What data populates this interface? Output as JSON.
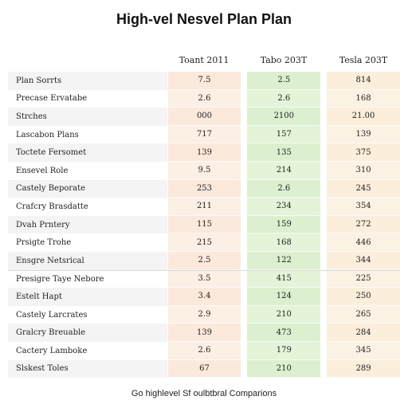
{
  "title": "High-vel Nesvel Plan Plan",
  "columns": [
    "Toant 2011",
    "Tabo 203T",
    "Tesla 203T"
  ],
  "rows": [
    {
      "label": "Plan Sorrts",
      "values": [
        "7.5",
        "2.5",
        "814"
      ]
    },
    {
      "label": "Precase Ervatabe",
      "values": [
        "2.6",
        "2.6",
        "168"
      ]
    },
    {
      "label": "Strches",
      "values": [
        "000",
        "2100",
        "21.00"
      ]
    },
    {
      "label": "Lascabon Plans",
      "values": [
        "717",
        "157",
        "139"
      ]
    },
    {
      "label": "Toctete Fersomet",
      "values": [
        "139",
        "135",
        "375"
      ]
    },
    {
      "label": "Ensevel Role",
      "values": [
        "9.5",
        "214",
        "310"
      ]
    },
    {
      "label": "Castely Beporate",
      "values": [
        "253",
        "2.6",
        "245"
      ]
    },
    {
      "label": "Crafcry Brasdatte",
      "values": [
        "211",
        "234",
        "354"
      ]
    },
    {
      "label": "Dvah Prntery",
      "values": [
        "115",
        "159",
        "272"
      ]
    },
    {
      "label": "Prsigte Trohe",
      "values": [
        "215",
        "168",
        "446"
      ]
    },
    {
      "label": "Ensgre Netsrical",
      "values": [
        "2.5",
        "122",
        "344"
      ]
    },
    {
      "label": "Presigre Taye Nebore",
      "values": [
        "3.5",
        "415",
        "225"
      ]
    },
    {
      "label": "Estelt Hapt",
      "values": [
        "3.4",
        "124",
        "250"
      ]
    },
    {
      "label": "Castely Larcrates",
      "values": [
        "2.9",
        "210",
        "265"
      ]
    },
    {
      "label": "Gralcry Breuable",
      "values": [
        "139",
        "473",
        "284"
      ]
    },
    {
      "label": "Cactery Lamboke",
      "values": [
        "2.6",
        "179",
        "345"
      ]
    },
    {
      "label": "Slskest Toles",
      "values": [
        "67",
        "210",
        "289"
      ]
    }
  ],
  "footer": "Go highlevel Sf oulbtbral Comparions"
}
